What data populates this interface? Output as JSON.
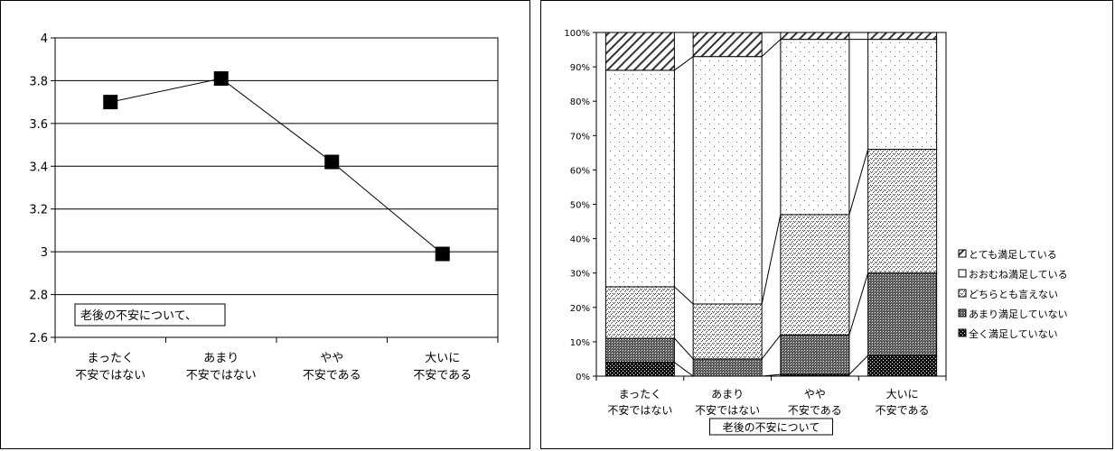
{
  "chart_data": [
    {
      "type": "line",
      "categories": [
        [
          "まったく",
          "不安ではない"
        ],
        [
          "あまり",
          "不安ではない"
        ],
        [
          "やや",
          "不安である"
        ],
        [
          "大いに",
          "不安である"
        ]
      ],
      "values": [
        3.7,
        3.81,
        3.42,
        2.99
      ],
      "yticks": [
        "4",
        "3.8",
        "3.6",
        "3.4",
        "3.2",
        "3",
        "2.8",
        "2.6"
      ],
      "ylim": [
        2.6,
        4.0
      ],
      "annotation": "老後の不安について、",
      "grid": true,
      "marker": "square"
    },
    {
      "type": "bar",
      "stacked": true,
      "percent": true,
      "categories": [
        [
          "まったく",
          "不安ではない"
        ],
        [
          "あまり",
          "不安ではない"
        ],
        [
          "やや",
          "不安である"
        ],
        [
          "大いに",
          "不安である"
        ]
      ],
      "series": [
        {
          "name": "全く満足していない",
          "values": [
            4,
            0,
            0.5,
            6
          ]
        },
        {
          "name": "あまり満足していない",
          "values": [
            7,
            5,
            11.5,
            24
          ]
        },
        {
          "name": "どちらとも言えない",
          "values": [
            15,
            16,
            35,
            36
          ]
        },
        {
          "name": "おおむね満足している",
          "values": [
            63,
            72,
            51,
            32
          ]
        },
        {
          "name": "とても満足している",
          "values": [
            11,
            7,
            2,
            2
          ]
        }
      ],
      "yticks": [
        "0%",
        "10%",
        "20%",
        "30%",
        "40%",
        "50%",
        "60%",
        "70%",
        "80%",
        "90%",
        "100%"
      ],
      "ylim": [
        0,
        100
      ],
      "xlabel": "老後の不安について",
      "legend_position": "right",
      "legend": [
        "とても満足している",
        "おおむね満足している",
        "どちらとも言えない",
        "あまり満足していない",
        "全く満足していない"
      ]
    }
  ]
}
